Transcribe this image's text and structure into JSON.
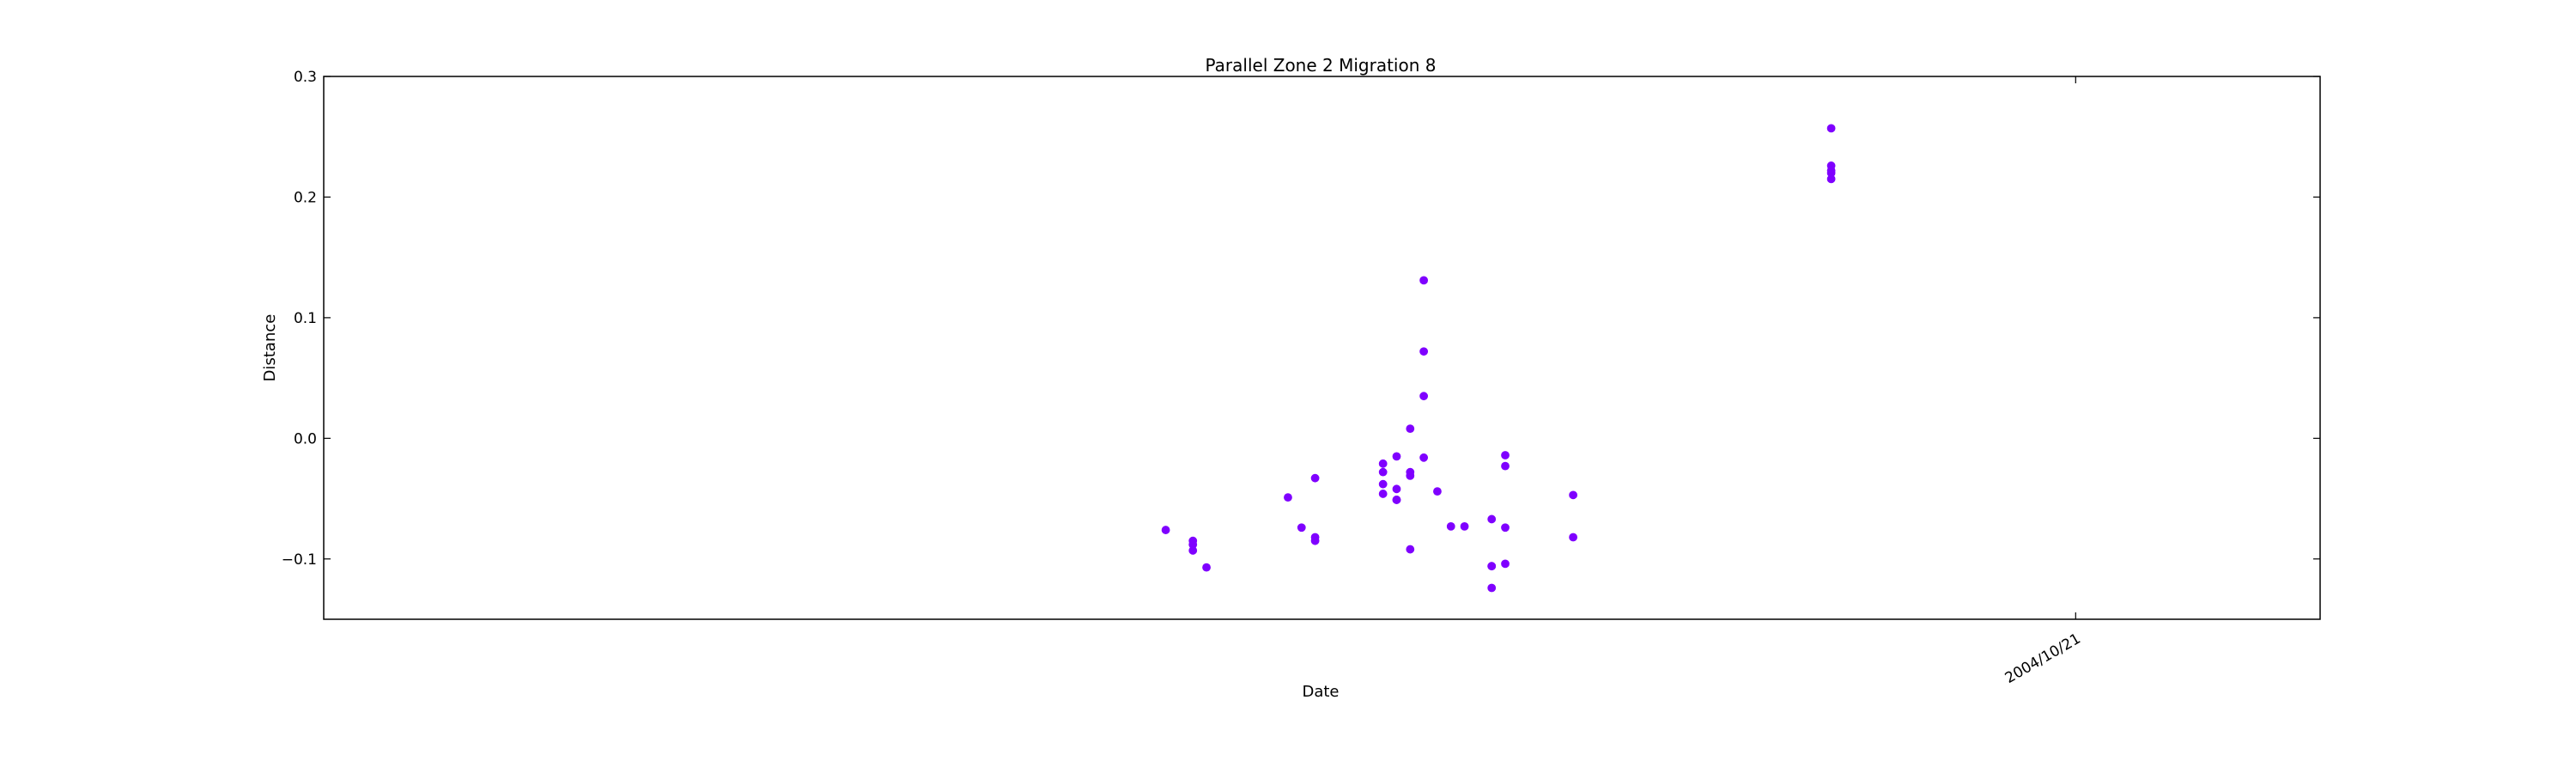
{
  "chart_data": {
    "type": "scatter",
    "title": "Parallel Zone 2 Migration 8",
    "xlabel": "Date",
    "ylabel": "Distance",
    "ylim": [
      -0.15,
      0.3
    ],
    "yticks": [
      -0.1,
      0.0,
      0.1,
      0.2,
      0.3
    ],
    "ytick_labels": [
      "−0.1",
      "0.0",
      "0.1",
      "0.2",
      "0.3"
    ],
    "xlim": [
      "2004-06-14",
      "2004-11-08"
    ],
    "xticks": [
      "2004-10-21"
    ],
    "xtick_labels": [
      "2004/10/21"
    ],
    "grid": false,
    "marker_color": "#7f00ff",
    "series": [
      {
        "points": [
          {
            "x": "2004-08-15",
            "y": -0.076
          },
          {
            "x": "2004-08-17",
            "y": -0.085
          },
          {
            "x": "2004-08-17",
            "y": -0.088
          },
          {
            "x": "2004-08-17",
            "y": -0.093
          },
          {
            "x": "2004-08-18",
            "y": -0.107
          },
          {
            "x": "2004-08-24",
            "y": -0.049
          },
          {
            "x": "2004-08-25",
            "y": -0.074
          },
          {
            "x": "2004-08-26",
            "y": -0.082
          },
          {
            "x": "2004-08-26",
            "y": -0.085
          },
          {
            "x": "2004-08-26",
            "y": -0.033
          },
          {
            "x": "2004-08-31",
            "y": -0.046
          },
          {
            "x": "2004-08-31",
            "y": -0.038
          },
          {
            "x": "2004-08-31",
            "y": -0.028
          },
          {
            "x": "2004-08-31",
            "y": -0.021
          },
          {
            "x": "2004-09-01",
            "y": -0.015
          },
          {
            "x": "2004-09-01",
            "y": -0.042
          },
          {
            "x": "2004-09-01",
            "y": -0.051
          },
          {
            "x": "2004-09-01",
            "y": -0.051
          },
          {
            "x": "2004-09-02",
            "y": -0.092
          },
          {
            "x": "2004-09-02",
            "y": 0.008
          },
          {
            "x": "2004-09-02",
            "y": -0.028
          },
          {
            "x": "2004-09-02",
            "y": -0.031
          },
          {
            "x": "2004-09-03",
            "y": 0.035
          },
          {
            "x": "2004-09-03",
            "y": -0.016
          },
          {
            "x": "2004-09-03",
            "y": 0.131
          },
          {
            "x": "2004-09-03",
            "y": 0.072
          },
          {
            "x": "2004-09-04",
            "y": -0.044
          },
          {
            "x": "2004-09-05",
            "y": -0.073
          },
          {
            "x": "2004-09-06",
            "y": -0.073
          },
          {
            "x": "2004-09-08",
            "y": -0.106
          },
          {
            "x": "2004-09-08",
            "y": -0.106
          },
          {
            "x": "2004-09-08",
            "y": -0.124
          },
          {
            "x": "2004-09-08",
            "y": -0.067
          },
          {
            "x": "2004-09-09",
            "y": -0.014
          },
          {
            "x": "2004-09-09",
            "y": -0.023
          },
          {
            "x": "2004-09-09",
            "y": -0.104
          },
          {
            "x": "2004-09-09",
            "y": -0.074
          },
          {
            "x": "2004-09-14",
            "y": -0.047
          },
          {
            "x": "2004-09-14",
            "y": -0.082
          },
          {
            "x": "2004-10-03",
            "y": 0.257
          },
          {
            "x": "2004-10-03",
            "y": 0.215
          },
          {
            "x": "2004-10-03",
            "y": 0.22
          },
          {
            "x": "2004-10-03",
            "y": 0.226
          },
          {
            "x": "2004-10-03",
            "y": 0.222
          }
        ]
      }
    ]
  }
}
